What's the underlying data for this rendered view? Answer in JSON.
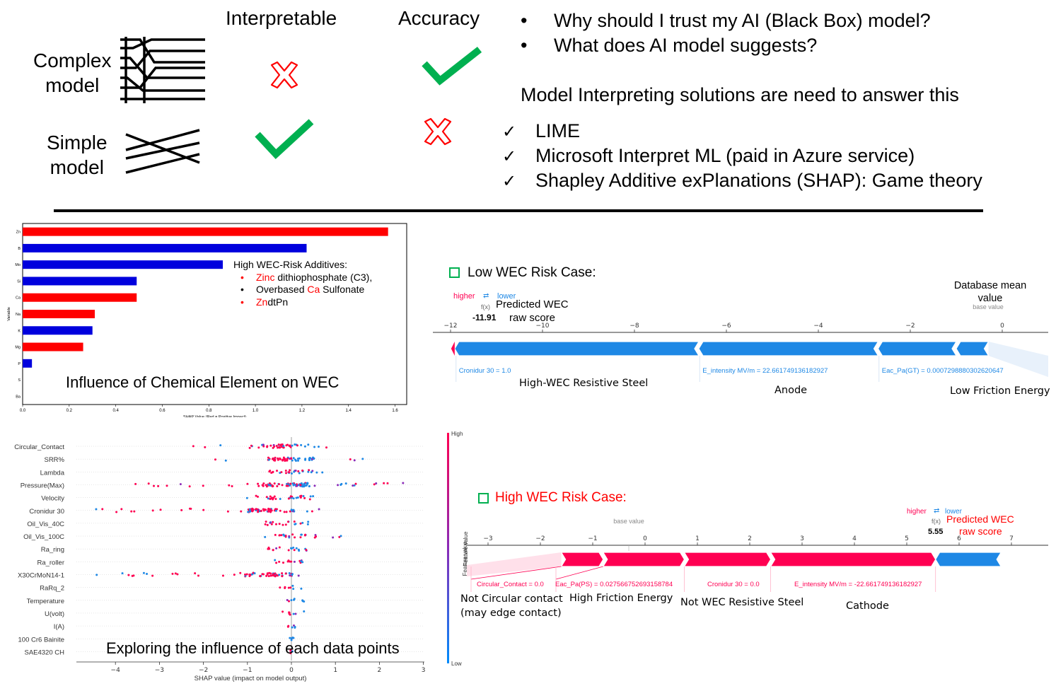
{
  "comparison": {
    "col_interpretable": "Interpretable",
    "col_accuracy": "Accuracy",
    "row_complex": [
      "Complex",
      "model"
    ],
    "row_simple": [
      "Simple",
      "model"
    ]
  },
  "questions": [
    "Why should I trust my AI (Black Box) model?",
    "What does AI model suggests?"
  ],
  "solutions_heading": "Model Interpreting solutions are need to answer this",
  "solutions": [
    "LIME",
    "Microsoft Interpret ML (paid in Azure service)",
    "Shapley Additive exPlanations (SHAP): Game theory"
  ],
  "colors": {
    "red": "#ff0000",
    "blue": "#0000dd",
    "green": "#00b050",
    "shap_red": "#ff0052",
    "shap_blue": "#1e88e5"
  },
  "bar_chart": {
    "chart_data": {
      "type": "bar",
      "orientation": "horizontal",
      "categories": [
        "Zn",
        "B",
        "Mo",
        "Si",
        "Ca",
        "Na",
        "K",
        "Mg",
        "P",
        "S",
        "Ba"
      ],
      "values": [
        1.57,
        1.22,
        0.86,
        0.49,
        0.49,
        0.31,
        0.3,
        0.26,
        0.04,
        0.0,
        0.0
      ],
      "bar_colors": [
        "red",
        "blue",
        "blue",
        "blue",
        "red",
        "red",
        "blue",
        "red",
        "blue",
        "blue",
        "blue"
      ],
      "xlim": [
        0,
        1.65
      ],
      "xticks": [
        "0.0",
        "0.2",
        "0.4",
        "0.6",
        "0.8",
        "1.0",
        "1.2",
        "1.4",
        "1.6"
      ],
      "xlabel": "SHAP Value (Red = Positive Impact)",
      "ylabel": "Variable"
    },
    "legend_title": "High WEC-Risk Additives:",
    "legend_items": [
      {
        "bullet": "•",
        "colored": "Zinc",
        "rest": " dithiophosphate (C3),",
        "bullet_red": true
      },
      {
        "bullet": "•",
        "pre": "Overbased ",
        "colored": "Ca",
        "rest": " Sulfonate",
        "bullet_red": false
      },
      {
        "bullet": "•",
        "colored": "Zn",
        "rest": "dtPn",
        "bullet_red": true
      }
    ],
    "caption": "Influence of Chemical Element on WEC"
  },
  "low_case": {
    "title": "Low WEC Risk Case:",
    "higher": "higher",
    "lower": "lower",
    "fx": "f(x)",
    "predicted_label": "Predicted WEC",
    "score": "-11.91",
    "raw_score": "raw score",
    "db_mean": [
      "Database mean",
      "value"
    ],
    "base_value": "base value",
    "chart_data": {
      "type": "force",
      "xticks": [
        "−12",
        "−10",
        "−8",
        "−6",
        "−4",
        "−2",
        "0"
      ],
      "xlim": [
        -12.2,
        1
      ],
      "output_value": -11.91,
      "base_value": -0.3,
      "features": [
        {
          "label": "Cronidur 30 = 1.0",
          "from": -11.91,
          "to": -6.6
        },
        {
          "label": "E_intensity MV/m = 22.661749136182927",
          "from": -6.6,
          "to": -2.7
        },
        {
          "label": "Eac_Pa(GT) = 0.0007298880302620647",
          "from": -2.7,
          "to": -1.0
        },
        {
          "label": "",
          "from": -1.0,
          "to": -0.3
        }
      ]
    },
    "annotations": [
      "High-WEC Resistive Steel",
      "Anode",
      "Low Friction Energy"
    ]
  },
  "beeswarm": {
    "chart_data": {
      "type": "scatter",
      "features": [
        "Circular_Contact",
        "SRR%",
        "Lambda",
        "Pressure(Max)",
        "Velocity",
        "Cronidur 30",
        "Oil_Vis_40C",
        "Oil_Vis_100C",
        "Ra_ring",
        "Ra_roller",
        "X30CrMoN14-1",
        "RaRq_2",
        "Temperature",
        "U(volt)",
        "I(A)",
        "100 Cr6 Bainite",
        "SAE4320 CH"
      ],
      "xlim": [
        -5,
        3
      ],
      "xticks": [
        "−4",
        "−3",
        "−2",
        "−1",
        "0",
        "1",
        "2",
        "3"
      ],
      "xlabel": "SHAP value (impact on model output)",
      "colorbar_label": "Feature value",
      "colorbar_high": "High",
      "colorbar_low": "Low",
      "spread": [
        [
          -2.4,
          0.9
        ],
        [
          -1.8,
          1.9
        ],
        [
          -1.3,
          0.8
        ],
        [
          -3.7,
          2.7
        ],
        [
          -1.2,
          1.1
        ],
        [
          -4.6,
          0.7
        ],
        [
          -0.8,
          0.6
        ],
        [
          -0.6,
          1.2
        ],
        [
          -0.7,
          0.6
        ],
        [
          -0.4,
          0.6
        ],
        [
          -4.6,
          0.2
        ],
        [
          -0.3,
          0.3
        ],
        [
          -0.3,
          0.3
        ],
        [
          -0.2,
          0.4
        ],
        [
          -0.1,
          0.1
        ],
        [
          -0.05,
          0.05
        ],
        [
          -0.03,
          0.03
        ]
      ]
    },
    "caption": "Exploring the influence of each data points"
  },
  "high_case": {
    "title": "High WEC Risk Case:",
    "higher": "higher",
    "lower": "lower",
    "fx": "f(x)",
    "predicted_label": "Predicted WEC",
    "score": "5.55",
    "raw_score": "raw score",
    "base_value": "base value",
    "chart_data": {
      "type": "force",
      "xticks": [
        "−3",
        "−2",
        "−1",
        "0",
        "1",
        "2",
        "3",
        "4",
        "5",
        "6",
        "7"
      ],
      "xlim": [
        -3.3,
        7.3
      ],
      "output_value": 5.55,
      "base_value": -0.3,
      "features": [
        {
          "label": "Circular_Contact = 0.0",
          "from": -1.6,
          "to": -0.8
        },
        {
          "label": "Eac_Pa(PS) = 0.02756675269315878​4",
          "from": -0.8,
          "to": 0.75
        },
        {
          "label": "Cronidur 30 = 0.0",
          "from": 0.75,
          "to": 2.4
        },
        {
          "label": "E_intensity MV/m = -22.661749136182927",
          "from": 2.4,
          "to": 5.55
        }
      ],
      "negative": [
        {
          "from": 5.55,
          "to": 6.8
        }
      ]
    },
    "annotations": [
      "Not Circular contact",
      "(may edge contact)",
      "High Friction Energy",
      "Not WEC Resistive Steel",
      "Cathode"
    ]
  }
}
